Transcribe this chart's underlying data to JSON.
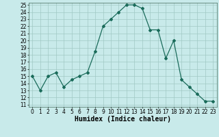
{
  "x": [
    0,
    1,
    2,
    3,
    4,
    5,
    6,
    7,
    8,
    9,
    10,
    11,
    12,
    13,
    14,
    15,
    16,
    17,
    18,
    19,
    20,
    21,
    22,
    23
  ],
  "y": [
    15,
    13,
    15,
    15.5,
    13.5,
    14.5,
    15,
    15.5,
    18.5,
    22,
    23,
    24,
    25,
    25,
    24.5,
    21.5,
    21.5,
    17.5,
    20,
    14.5,
    13.5,
    12.5,
    11.5,
    11.5
  ],
  "xlabel": "Humidex (Indice chaleur)",
  "ylim_min": 11,
  "ylim_max": 25,
  "xlim_min": -0.5,
  "xlim_max": 23.5,
  "yticks": [
    11,
    12,
    13,
    14,
    15,
    16,
    17,
    18,
    19,
    20,
    21,
    22,
    23,
    24,
    25
  ],
  "xticks": [
    0,
    1,
    2,
    3,
    4,
    5,
    6,
    7,
    8,
    9,
    10,
    11,
    12,
    13,
    14,
    15,
    16,
    17,
    18,
    19,
    20,
    21,
    22,
    23
  ],
  "line_color": "#1a6b5a",
  "marker": "D",
  "marker_size": 2.0,
  "bg_color": "#c8eaea",
  "grid_color": "#a0c8c4",
  "xlabel_fontsize": 7,
  "tick_fontsize": 5.5,
  "linewidth": 0.9
}
